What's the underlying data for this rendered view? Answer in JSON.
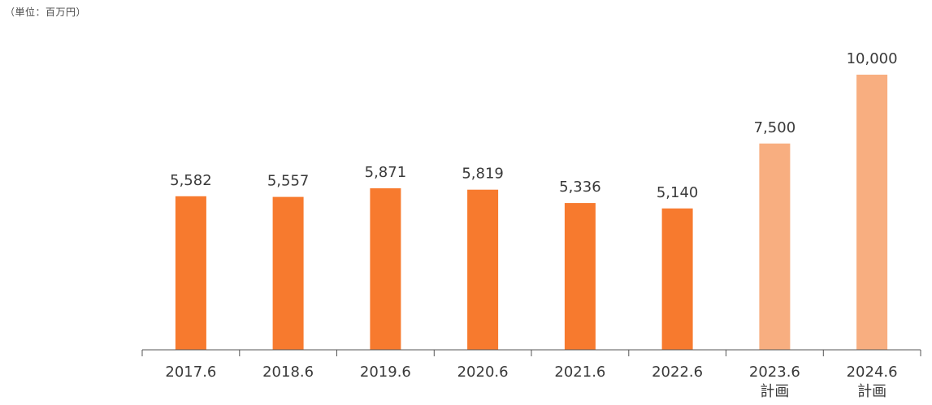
{
  "unit_label": "（単位：百万円）",
  "colors": {
    "actual": "#f77a2e",
    "plan": "#f8ae80",
    "axis": "#555555",
    "text": "#3a3a3a"
  },
  "chart_data": {
    "type": "bar",
    "categories": [
      "2017.6",
      "2018.6",
      "2019.6",
      "2020.6",
      "2021.6",
      "2022.6",
      "2023.6",
      "2024.6"
    ],
    "category_sublabels": [
      "",
      "",
      "",
      "",
      "",
      "",
      "計画",
      "計画"
    ],
    "values": [
      5582,
      5557,
      5871,
      5819,
      5336,
      5140,
      7500,
      10000
    ],
    "value_labels": [
      "5,582",
      "5,557",
      "5,871",
      "5,819",
      "5,336",
      "5,140",
      "7,500",
      "10,000"
    ],
    "is_plan": [
      false,
      false,
      false,
      false,
      false,
      false,
      true,
      true
    ],
    "title": "",
    "xlabel": "",
    "ylabel": "",
    "ylim": [
      0,
      10000
    ],
    "grid": false,
    "legend": "none"
  }
}
